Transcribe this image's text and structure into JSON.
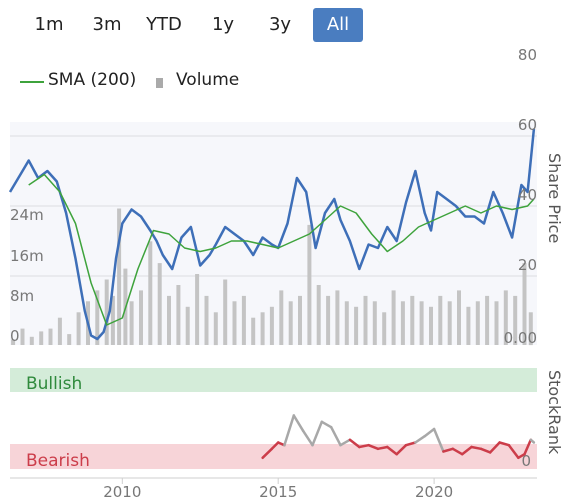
{
  "range_buttons": [
    {
      "label": "1m",
      "active": false
    },
    {
      "label": "3m",
      "active": false
    },
    {
      "label": "YTD",
      "active": false
    },
    {
      "label": "1y",
      "active": false
    },
    {
      "label": "3y",
      "active": false
    },
    {
      "label": "All",
      "active": true
    }
  ],
  "legend": {
    "sma_label": "SMA (200)",
    "volume_label": "Volume"
  },
  "axes": {
    "price_axis_title": "Share Price",
    "rank_axis_title": "StockRank",
    "price_ticks": [
      "80",
      "60",
      "40",
      "20",
      "0.00"
    ],
    "volume_ticks": [
      "24m",
      "16m",
      "8m",
      "0"
    ],
    "rank_ticks": [
      "0"
    ],
    "x_ticks": [
      "2010",
      "2015",
      "2020"
    ]
  },
  "zones": {
    "bullish_label": "Bullish",
    "bearish_label": "Bearish"
  },
  "colors": {
    "price_line": "#3e6fb8",
    "sma_line": "#3ea33c",
    "volume_bar": "#c4c4c4",
    "bullish_band": "#d4ecd9",
    "bearish_band": "#f7d4d8",
    "rank_bearish": "#cc3d4a",
    "rank_neutral": "#a8a8a8",
    "active_button": "#4a7dc0"
  },
  "chart_data": [
    {
      "type": "line",
      "x_unit": "year",
      "ylim": [
        0,
        80
      ],
      "series": [
        {
          "name": "",
          "x": [
            2006.4,
            2006.8,
            2007.0,
            2007.3,
            2007.6,
            2007.9,
            2008.2,
            2008.5,
            2008.8,
            2009.0,
            2009.2,
            2009.4,
            2009.6,
            2009.8,
            2010.0,
            2010.3,
            2010.6,
            2010.9,
            2011.1,
            2011.3,
            2011.6,
            2011.9,
            2012.2,
            2012.5,
            2012.8,
            2013.0,
            2013.3,
            2013.6,
            2013.9,
            2014.2,
            2014.5,
            2014.8,
            2015.0,
            2015.3,
            2015.6,
            2015.9,
            2016.2,
            2016.5,
            2016.8,
            2017.0,
            2017.3,
            2017.6,
            2017.9,
            2018.2,
            2018.5,
            2018.8,
            2019.1,
            2019.4,
            2019.7,
            2019.9,
            2020.1,
            2020.4,
            2020.7,
            2021.0,
            2021.3,
            2021.6,
            2021.9,
            2022.2,
            2022.5,
            2022.8,
            2023.0,
            2023.2
          ],
          "values": [
            44,
            50,
            53,
            48,
            50,
            47,
            38,
            25,
            10,
            3,
            2,
            4,
            10,
            25,
            35,
            39,
            37,
            33,
            30,
            26,
            22,
            31,
            34,
            23,
            26,
            29,
            34,
            32,
            30,
            26,
            31,
            29,
            28,
            35,
            48,
            44,
            28,
            38,
            42,
            36,
            30,
            22,
            29,
            28,
            34,
            30,
            41,
            50,
            38,
            33,
            44,
            42,
            40,
            37,
            37,
            35,
            44,
            38,
            31,
            46,
            44,
            62
          ]
        },
        {
          "name": "SMA (200)",
          "x": [
            2007.0,
            2007.5,
            2008.0,
            2008.5,
            2009.0,
            2009.5,
            2010.0,
            2010.5,
            2011.0,
            2011.5,
            2012.0,
            2012.5,
            2013.0,
            2013.5,
            2014.0,
            2014.5,
            2015.0,
            2015.5,
            2016.0,
            2016.5,
            2017.0,
            2017.5,
            2018.0,
            2018.5,
            2019.0,
            2019.5,
            2020.0,
            2020.5,
            2021.0,
            2021.5,
            2022.0,
            2022.5,
            2023.0,
            2023.2
          ],
          "values": [
            46,
            49,
            44,
            35,
            18,
            6,
            8,
            22,
            33,
            32,
            28,
            27,
            28,
            30,
            30,
            29,
            28,
            30,
            32,
            36,
            40,
            38,
            32,
            27,
            30,
            34,
            36,
            38,
            40,
            38,
            40,
            39,
            40,
            42
          ]
        }
      ]
    },
    {
      "type": "bar",
      "ylim": [
        0,
        30
      ],
      "yunit": "m",
      "series": [
        {
          "name": "Volume",
          "x": [
            2006.5,
            2006.8,
            2007.1,
            2007.4,
            2007.7,
            2008.0,
            2008.3,
            2008.6,
            2008.9,
            2009.2,
            2009.5,
            2009.7,
            2009.9,
            2010.1,
            2010.3,
            2010.6,
            2010.9,
            2011.2,
            2011.5,
            2011.8,
            2012.1,
            2012.4,
            2012.7,
            2013.0,
            2013.3,
            2013.6,
            2013.9,
            2014.2,
            2014.5,
            2014.8,
            2015.1,
            2015.4,
            2015.7,
            2016.0,
            2016.3,
            2016.6,
            2016.9,
            2017.2,
            2017.5,
            2017.8,
            2018.1,
            2018.4,
            2018.7,
            2019.0,
            2019.3,
            2019.6,
            2019.9,
            2020.2,
            2020.5,
            2020.8,
            2021.1,
            2021.4,
            2021.7,
            2022.0,
            2022.3,
            2022.6,
            2022.9,
            2023.1
          ],
          "values": [
            1,
            3,
            1.5,
            2.5,
            3,
            5,
            2,
            6,
            8,
            10,
            12,
            9,
            25,
            14,
            8,
            10,
            19,
            15,
            9,
            11,
            7,
            13,
            9,
            6,
            12,
            8,
            9,
            5,
            6,
            7,
            10,
            8,
            9,
            22,
            11,
            9,
            10,
            8,
            7,
            9,
            8,
            6,
            10,
            8,
            9,
            8,
            7,
            9,
            8,
            10,
            7,
            8,
            9,
            8,
            10,
            9,
            15,
            6
          ]
        }
      ]
    },
    {
      "type": "line",
      "ylim": [
        0,
        100
      ],
      "series": [
        {
          "name": "StockRank",
          "x": [
            2014.5,
            2014.8,
            2015.0,
            2015.2,
            2015.5,
            2015.8,
            2016.1,
            2016.4,
            2016.7,
            2017.0,
            2017.3,
            2017.6,
            2017.9,
            2018.2,
            2018.5,
            2018.8,
            2019.1,
            2019.4,
            2019.7,
            2020.0,
            2020.3,
            2020.6,
            2020.9,
            2021.2,
            2021.5,
            2021.8,
            2022.1,
            2022.4,
            2022.7,
            2022.9,
            2023.1,
            2023.2
          ],
          "values": [
            8,
            18,
            25,
            22,
            55,
            38,
            22,
            48,
            42,
            22,
            28,
            20,
            22,
            18,
            20,
            12,
            22,
            25,
            32,
            40,
            15,
            18,
            12,
            20,
            18,
            14,
            25,
            22,
            8,
            12,
            28,
            25
          ]
        }
      ]
    }
  ]
}
